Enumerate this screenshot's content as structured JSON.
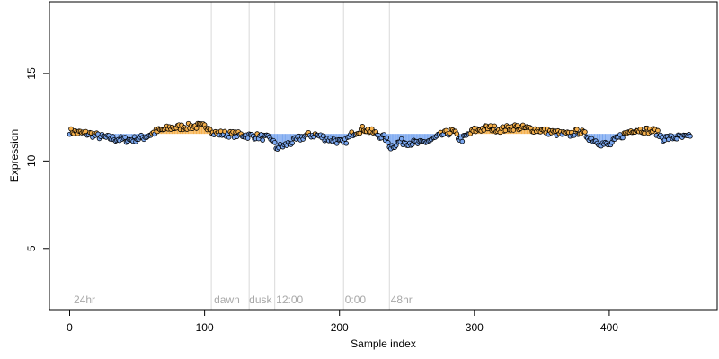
{
  "chart_data": {
    "type": "scatter",
    "title": "",
    "xlabel": "Sample index",
    "ylabel": "Expression",
    "xlim": [
      -15,
      480
    ],
    "ylim": [
      1.5,
      19.1
    ],
    "xticks": [
      0,
      100,
      200,
      300,
      400
    ],
    "yticks": [
      5,
      10,
      15
    ],
    "phase_lines": [
      105,
      133,
      152,
      203,
      237
    ],
    "phase_labels": [
      {
        "x": 3,
        "label": "24hr"
      },
      {
        "x": 107,
        "label": "dawn"
      },
      {
        "x": 133,
        "label": "dusk"
      },
      {
        "x": 153,
        "label": "12:00"
      },
      {
        "x": 204,
        "label": "0:00"
      },
      {
        "x": 238,
        "label": "48hr"
      }
    ],
    "baseline": 11.55,
    "colors": {
      "above": "#f5b04c",
      "below": "#7aa7f0",
      "point_stroke": "#000000",
      "grid": "#d9d9d9",
      "phase_text": "#a8a8a8"
    },
    "series": [
      {
        "name": "",
        "anchors": [
          [
            0,
            11.7
          ],
          [
            8,
            11.6
          ],
          [
            15,
            11.55
          ],
          [
            25,
            11.35
          ],
          [
            35,
            11.25
          ],
          [
            45,
            11.2
          ],
          [
            55,
            11.35
          ],
          [
            65,
            11.7
          ],
          [
            75,
            11.9
          ],
          [
            85,
            11.95
          ],
          [
            95,
            12.0
          ],
          [
            104,
            11.95
          ],
          [
            106,
            11.6
          ],
          [
            115,
            11.55
          ],
          [
            125,
            11.5
          ],
          [
            133,
            11.45
          ],
          [
            140,
            11.4
          ],
          [
            150,
            11.25
          ],
          [
            153,
            10.75
          ],
          [
            160,
            10.9
          ],
          [
            168,
            11.2
          ],
          [
            175,
            11.45
          ],
          [
            182,
            11.5
          ],
          [
            190,
            11.3
          ],
          [
            198,
            11.15
          ],
          [
            203,
            11.0
          ],
          [
            210,
            11.6
          ],
          [
            218,
            11.85
          ],
          [
            226,
            11.6
          ],
          [
            234,
            11.3
          ],
          [
            238,
            10.8
          ],
          [
            245,
            11.1
          ],
          [
            252,
            11.05
          ],
          [
            260,
            11.0
          ],
          [
            268,
            11.2
          ],
          [
            276,
            11.5
          ],
          [
            284,
            11.7
          ],
          [
            290,
            11.2
          ],
          [
            300,
            11.75
          ],
          [
            310,
            11.9
          ],
          [
            320,
            11.8
          ],
          [
            330,
            11.95
          ],
          [
            340,
            11.85
          ],
          [
            350,
            11.75
          ],
          [
            360,
            11.6
          ],
          [
            370,
            11.5
          ],
          [
            378,
            11.7
          ],
          [
            386,
            11.3
          ],
          [
            394,
            11.0
          ],
          [
            400,
            10.9
          ],
          [
            408,
            11.4
          ],
          [
            418,
            11.8
          ],
          [
            428,
            11.75
          ],
          [
            434,
            11.7
          ],
          [
            440,
            11.3
          ],
          [
            450,
            11.35
          ],
          [
            461,
            11.35
          ]
        ],
        "n_points": 461
      }
    ]
  }
}
